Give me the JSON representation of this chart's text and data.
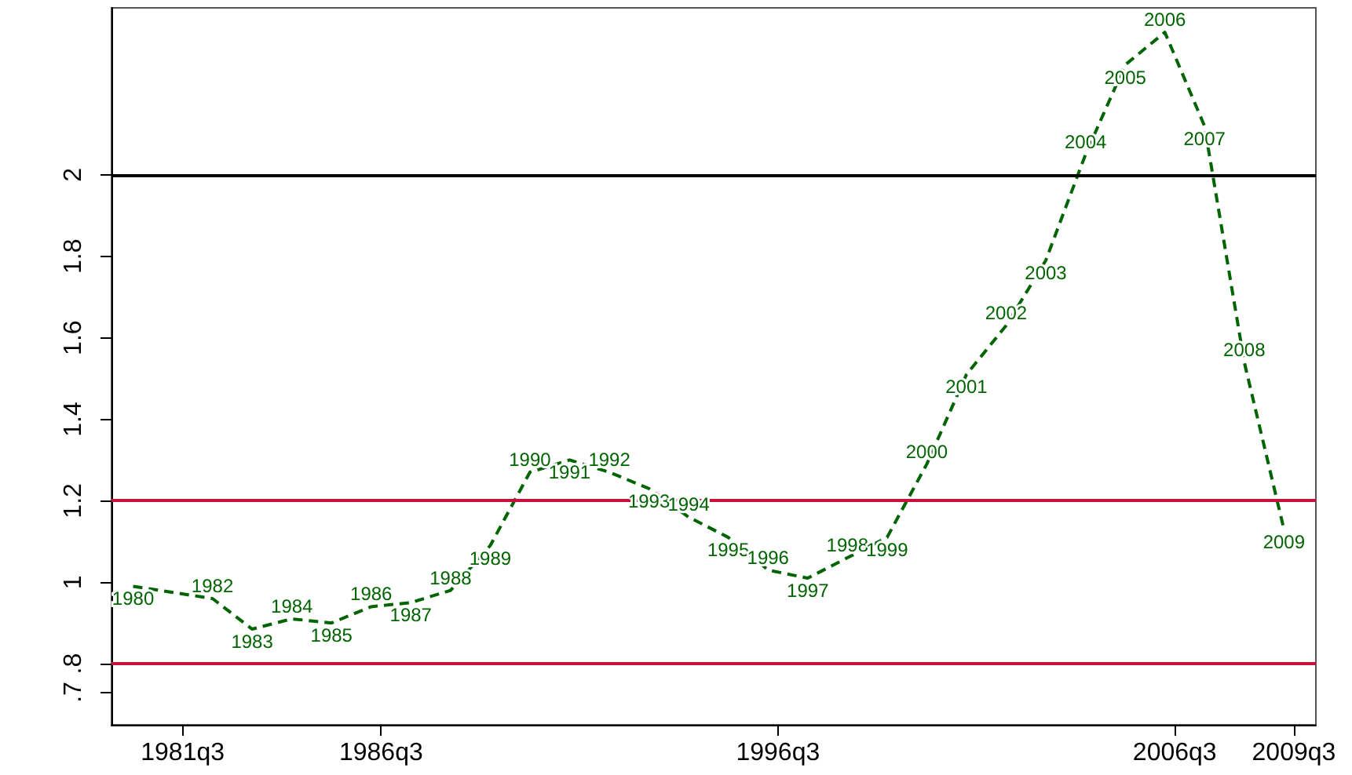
{
  "chart_data": {
    "type": "line",
    "x": [
      "1980-04",
      "1981-04",
      "1982-04",
      "1983-04",
      "1984-04",
      "1985-04",
      "1986-04",
      "1987-04",
      "1988-04",
      "1989-04",
      "1990-04",
      "1991-04",
      "1992-04",
      "1993-04",
      "1994-04",
      "1995-04",
      "1996-04",
      "1997-04",
      "1998-04",
      "1999-04",
      "2000-04",
      "2001-04",
      "2002-04",
      "2003-04",
      "2004-04",
      "2005-04",
      "2006-04",
      "2007-04",
      "2008-04",
      "2009-04"
    ],
    "series": [
      {
        "color": "#006400",
        "values": [
          0.99,
          0.975,
          0.96,
          0.885,
          0.91,
          0.9,
          0.94,
          0.95,
          0.98,
          1.09,
          1.27,
          1.3,
          1.27,
          1.23,
          1.16,
          1.11,
          1.03,
          1.01,
          1.06,
          1.11,
          1.29,
          1.51,
          1.63,
          1.79,
          2.05,
          2.27,
          2.35,
          2.12,
          1.54,
          1.13
        ]
      }
    ],
    "line_style": "dashed",
    "marker": "none",
    "xlim": [
      "1979-09-15",
      "2010-01-20"
    ],
    "ylim": [
      0.65,
      2.41
    ],
    "xticks": [
      {
        "value": "1981-07",
        "label": "1981q3"
      },
      {
        "value": "1986-07",
        "label": "1986q3"
      },
      {
        "value": "1996-07",
        "label": "1996q3"
      },
      {
        "value": "2006-07",
        "label": "2006q3"
      },
      {
        "value": "2009-07",
        "label": "2009q3"
      }
    ],
    "yticks": [
      {
        "value": 0.73,
        "label": ".7"
      },
      {
        "value": 0.8,
        "label": ".8"
      },
      1,
      1.2,
      1.4,
      1.6,
      1.8,
      2
    ],
    "ref_lines": [
      {
        "axis": "y",
        "value": 2,
        "color": "#000000"
      },
      {
        "axis": "y",
        "value": 1.2,
        "color": "#c8103c"
      },
      {
        "axis": "y",
        "value": 0.8,
        "color": "#c8103c"
      }
    ],
    "annotations": [
      {
        "text": "1980",
        "x": "1980-04",
        "y": 0.99
      },
      {
        "text": "1982",
        "x": "1982-04",
        "y": 0.96
      },
      {
        "text": "1983",
        "x": "1983-04",
        "y": 0.885
      },
      {
        "text": "1984",
        "x": "1984-04",
        "y": 0.91
      },
      {
        "text": "1985",
        "x": "1985-04",
        "y": 0.9
      },
      {
        "text": "1986",
        "x": "1986-04",
        "y": 0.94
      },
      {
        "text": "1987",
        "x": "1987-04",
        "y": 0.95
      },
      {
        "text": "1988",
        "x": "1988-04",
        "y": 0.98
      },
      {
        "text": "1989",
        "x": "1989-04",
        "y": 1.09
      },
      {
        "text": "1990",
        "x": "1990-04",
        "y": 1.27
      },
      {
        "text": "1991",
        "x": "1991-04",
        "y": 1.3
      },
      {
        "text": "1992",
        "x": "1992-04",
        "y": 1.27
      },
      {
        "text": "1993",
        "x": "1993-04",
        "y": 1.23
      },
      {
        "text": "1994",
        "x": "1994-04",
        "y": 1.16
      },
      {
        "text": "1995",
        "x": "1995-04",
        "y": 1.11
      },
      {
        "text": "1996",
        "x": "1996-04",
        "y": 1.03
      },
      {
        "text": "1997",
        "x": "1997-04",
        "y": 1.01
      },
      {
        "text": "1998",
        "x": "1998-04",
        "y": 1.06
      },
      {
        "text": "1999",
        "x": "1999-04",
        "y": 1.11
      },
      {
        "text": "2000",
        "x": "2000-04",
        "y": 1.29
      },
      {
        "text": "2001",
        "x": "2001-04",
        "y": 1.51
      },
      {
        "text": "2002",
        "x": "2002-04",
        "y": 1.63
      },
      {
        "text": "2003",
        "x": "2003-04",
        "y": 1.79
      },
      {
        "text": "2004",
        "x": "2004-04",
        "y": 2.05
      },
      {
        "text": "2005",
        "x": "2005-04",
        "y": 2.27
      },
      {
        "text": "2006",
        "x": "2006-04",
        "y": 2.35
      },
      {
        "text": "2007",
        "x": "2007-04",
        "y": 2.12
      },
      {
        "text": "2008",
        "x": "2008-04",
        "y": 1.54
      },
      {
        "text": "2009",
        "x": "2009-04",
        "y": 1.13
      }
    ]
  }
}
